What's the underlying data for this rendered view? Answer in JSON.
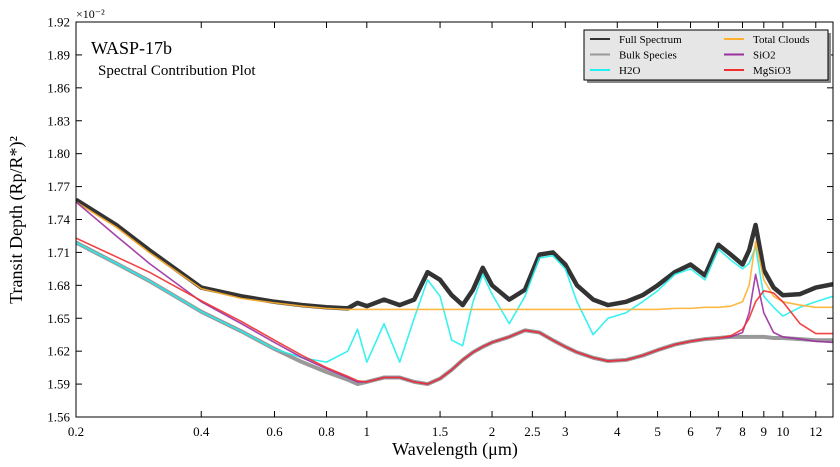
{
  "chart_data": {
    "type": "line",
    "title": "WASP-17b",
    "subtitle": "Spectral Contribution Plot",
    "x_label": "Wavelength (μm)",
    "y_label": "Transit Depth (Rp/R*)²",
    "y_offset_label": "×10⁻²",
    "xscale": "log",
    "legend": "upper right",
    "xlim": [
      0.2,
      13.2
    ],
    "ylim": [
      1.56,
      1.92
    ],
    "xticks": [
      0.2,
      0.4,
      0.6,
      0.8,
      1,
      1.5,
      2,
      2.5,
      3,
      4,
      5,
      6,
      7,
      8,
      9,
      10,
      12
    ],
    "yticks": [
      1.56,
      1.59,
      1.62,
      1.65,
      1.68,
      1.71,
      1.74,
      1.77,
      {
        "value": 1.8,
        "label": "1.80"
      },
      1.83,
      1.86,
      1.89,
      1.92
    ],
    "x": [
      0.2,
      0.25,
      0.3,
      0.4,
      0.5,
      0.6,
      0.7,
      0.8,
      0.9,
      0.95,
      1.0,
      1.1,
      1.2,
      1.3,
      1.4,
      1.5,
      1.6,
      1.7,
      1.8,
      1.9,
      2.0,
      2.2,
      2.4,
      2.6,
      2.8,
      3.0,
      3.2,
      3.5,
      3.8,
      4.2,
      4.6,
      5.0,
      5.5,
      6.0,
      6.5,
      7.0,
      7.5,
      8.0,
      8.3,
      8.6,
      9.0,
      9.5,
      10,
      11,
      12,
      13.2
    ],
    "series": [
      {
        "name": "Full Spectrum",
        "color": "#333333",
        "values": [
          1.758,
          1.735,
          1.712,
          1.678,
          1.67,
          1.665,
          1.662,
          1.66,
          1.659,
          1.664,
          1.661,
          1.667,
          1.662,
          1.667,
          1.692,
          1.685,
          1.671,
          1.662,
          1.676,
          1.696,
          1.68,
          1.667,
          1.676,
          1.708,
          1.71,
          1.699,
          1.68,
          1.667,
          1.662,
          1.665,
          1.671,
          1.68,
          1.692,
          1.699,
          1.689,
          1.717,
          1.708,
          1.699,
          1.712,
          1.735,
          1.694,
          1.678,
          1.671,
          1.672,
          1.678,
          1.681
        ]
      },
      {
        "name": "Bulk Species",
        "color": "#999999",
        "values": [
          1.719,
          1.7,
          1.684,
          1.656,
          1.638,
          1.622,
          1.61,
          1.601,
          1.594,
          1.59,
          1.592,
          1.596,
          1.596,
          1.592,
          1.59,
          1.595,
          1.603,
          1.612,
          1.619,
          1.624,
          1.628,
          1.633,
          1.639,
          1.637,
          1.63,
          1.624,
          1.619,
          1.614,
          1.611,
          1.612,
          1.616,
          1.621,
          1.626,
          1.629,
          1.631,
          1.632,
          1.633,
          1.633,
          1.633,
          1.633,
          1.633,
          1.632,
          1.632,
          1.631,
          1.63,
          1.63
        ]
      },
      {
        "name": "H2O",
        "color": "#22f0f0",
        "values": [
          1.719,
          1.7,
          1.684,
          1.656,
          1.638,
          1.622,
          1.614,
          1.61,
          1.62,
          1.64,
          1.61,
          1.645,
          1.61,
          1.65,
          1.685,
          1.67,
          1.63,
          1.625,
          1.665,
          1.69,
          1.672,
          1.645,
          1.67,
          1.705,
          1.707,
          1.695,
          1.665,
          1.635,
          1.65,
          1.655,
          1.665,
          1.675,
          1.69,
          1.695,
          1.685,
          1.713,
          1.703,
          1.695,
          1.7,
          1.715,
          1.67,
          1.66,
          1.652,
          1.66,
          1.665,
          1.67
        ]
      },
      {
        "name": "Total Clouds",
        "color": "#ffb030",
        "values": [
          1.756,
          1.733,
          1.71,
          1.677,
          1.668,
          1.664,
          1.661,
          1.659,
          1.658,
          1.658,
          1.658,
          1.658,
          1.658,
          1.658,
          1.658,
          1.658,
          1.658,
          1.658,
          1.658,
          1.658,
          1.658,
          1.658,
          1.658,
          1.658,
          1.658,
          1.658,
          1.658,
          1.658,
          1.658,
          1.658,
          1.658,
          1.658,
          1.659,
          1.659,
          1.66,
          1.66,
          1.661,
          1.665,
          1.68,
          1.72,
          1.685,
          1.67,
          1.665,
          1.662,
          1.66,
          1.66
        ]
      },
      {
        "name": "SiO2",
        "color": "#9b30a0",
        "values": [
          1.756,
          1.725,
          1.7,
          1.665,
          1.645,
          1.628,
          1.614,
          1.604,
          1.596,
          1.592,
          1.592,
          1.596,
          1.596,
          1.592,
          1.59,
          1.595,
          1.603,
          1.612,
          1.619,
          1.624,
          1.628,
          1.633,
          1.639,
          1.637,
          1.63,
          1.624,
          1.619,
          1.614,
          1.611,
          1.612,
          1.616,
          1.621,
          1.626,
          1.629,
          1.631,
          1.632,
          1.633,
          1.637,
          1.655,
          1.69,
          1.655,
          1.637,
          1.633,
          1.631,
          1.629,
          1.628
        ]
      },
      {
        "name": "MgSiO3",
        "color": "#f03030",
        "values": [
          1.723,
          1.706,
          1.692,
          1.666,
          1.647,
          1.63,
          1.616,
          1.605,
          1.597,
          1.593,
          1.592,
          1.596,
          1.596,
          1.592,
          1.59,
          1.595,
          1.603,
          1.612,
          1.619,
          1.624,
          1.628,
          1.633,
          1.639,
          1.637,
          1.63,
          1.624,
          1.619,
          1.614,
          1.611,
          1.612,
          1.616,
          1.621,
          1.626,
          1.629,
          1.631,
          1.632,
          1.634,
          1.64,
          1.65,
          1.665,
          1.675,
          1.673,
          1.665,
          1.645,
          1.636,
          1.636
        ]
      }
    ]
  }
}
